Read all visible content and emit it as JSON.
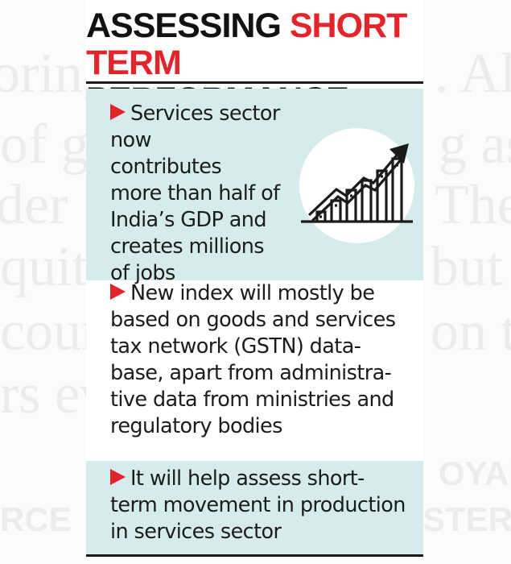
{
  "headline": {
    "line1_black": "ASSESSING",
    "line1_red": "SHORT",
    "line2_red": "TERM",
    "line2_black": "PERFORMANCE"
  },
  "points": [
    {
      "text": "Services sector now\ncontributes\nmore than half of\nIndia’s GDP and\ncreates millions\nof jobs"
    },
    {
      "text": "New index will mostly be\nbased on goods and services\ntax network (GSTN) data-\nbase, apart from administra-\ntive data from ministries and\nregulatory bodies"
    },
    {
      "text": "It will help assess short-\nterm movement in production\nin services sector"
    }
  ],
  "icon": {
    "name": "rising-bar-chart-icon"
  },
  "colors": {
    "accent_red": "#e3242b",
    "panel_teal": "#d6ecec",
    "text_dark": "#1c1c1c"
  },
  "background_fragments": [
    "oring",
    ". All",
    "of g",
    "g as",
    "der",
    "The",
    "quit",
    "but",
    "cour",
    "on t",
    "rs ev",
    "OYAL",
    "RCE",
    "STER"
  ]
}
